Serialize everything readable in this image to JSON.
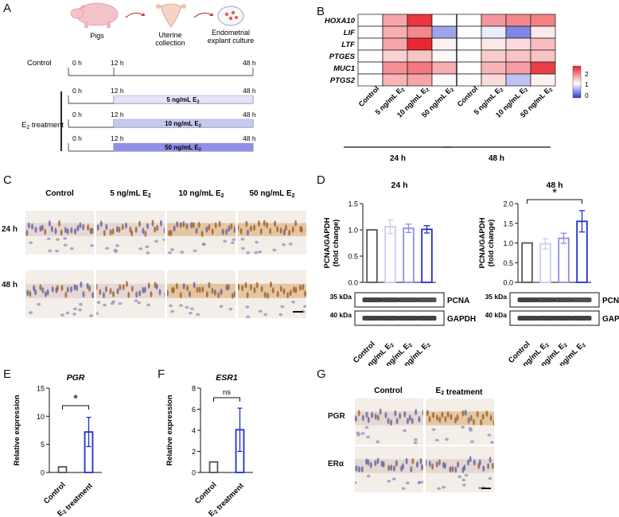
{
  "panels": {
    "a": "A",
    "b": "B",
    "c": "C",
    "d": "D",
    "e": "E",
    "f": "F",
    "g": "G"
  },
  "panel_a": {
    "pigs_label": "Pigs",
    "uterine_label": "Uterine collection",
    "explant_label": "Endometrial explant culture",
    "control_label": "Control",
    "treatment_label": "E₂ treatment",
    "time_0": "0 h",
    "time_12": "12 h",
    "time_48": "48 h",
    "doses": [
      "5 ng/mL E₂",
      "10 ng/mL E₂",
      "50 ng/mL E₂"
    ],
    "colors": {
      "dose5": "#e3e4f8",
      "dose10": "#c7c9f0",
      "dose50": "#8e8fe6"
    }
  },
  "chart_data": [
    {
      "id": "B",
      "type": "heatmap",
      "rows": [
        "HOXA10",
        "LIF",
        "LTF",
        "PTGES",
        "MUC1",
        "PTGS2"
      ],
      "columns": [
        "Control",
        "5 ng/mL E₂",
        "10 ng/mL E₂",
        "50 ng/mL E₂",
        "Control",
        "5 ng/mL E₂",
        "10 ng/mL E₂",
        "50 ng/mL E₂"
      ],
      "groups": [
        {
          "label": "24 h",
          "columns": [
            0,
            1,
            2,
            3
          ]
        },
        {
          "label": "48 h",
          "columns": [
            4,
            5,
            6,
            7
          ]
        }
      ],
      "values": [
        [
          1.0,
          1.6,
          2.35,
          1.0,
          1.0,
          1.7,
          1.8,
          1.85
        ],
        [
          1.0,
          1.55,
          1.8,
          0.55,
          1.0,
          0.9,
          0.4,
          1.15
        ],
        [
          1.0,
          1.6,
          2.45,
          1.1,
          1.0,
          1.15,
          1.25,
          1.45
        ],
        [
          1.0,
          1.3,
          1.4,
          1.05,
          1.0,
          1.35,
          1.4,
          1.4
        ],
        [
          1.0,
          1.75,
          1.9,
          1.55,
          1.0,
          1.5,
          1.65,
          2.3
        ],
        [
          1.0,
          1.5,
          1.6,
          1.05,
          1.0,
          1.25,
          0.7,
          1.1
        ]
      ],
      "colorbar": {
        "ticks": [
          "2",
          "1",
          "0"
        ],
        "min": 0,
        "max": 2.5
      }
    },
    {
      "id": "D-24h",
      "type": "bar",
      "title": "24 h",
      "ylabel": "PCNA/GAPDH (fold change)",
      "categories": [
        "Control",
        "5 ng/mL E₂",
        "10 ng/mL E₂",
        "50 ng/mL E₂"
      ],
      "values": [
        1.0,
        1.06,
        1.03,
        1.01
      ],
      "errors": [
        0,
        0.13,
        0.08,
        0.07
      ],
      "ylim": [
        0,
        1.5
      ],
      "yticks": [
        "0.0",
        "0.5",
        "1.0",
        "1.5"
      ]
    },
    {
      "id": "D-48h",
      "type": "bar",
      "title": "48 h",
      "ylabel": "PCNA/GAPDH (fold change)",
      "categories": [
        "Control",
        "5 ng/mL E₂",
        "10 ng/mL E₂",
        "50 ng/mL E₂"
      ],
      "values": [
        1.0,
        0.98,
        1.12,
        1.55
      ],
      "errors": [
        0,
        0.13,
        0.13,
        0.27
      ],
      "ylim": [
        0,
        2.0
      ],
      "yticks": [
        "0.0",
        "0.5",
        "1.0",
        "1.5",
        "2.0"
      ],
      "significance": "*"
    },
    {
      "id": "E",
      "type": "bar",
      "title": "PGR",
      "ylabel": "Relative expression",
      "categories": [
        "Control",
        "E₂ treatment"
      ],
      "values": [
        1.0,
        7.2
      ],
      "errors": [
        0,
        2.6
      ],
      "ylim": [
        0,
        15
      ],
      "yticks": [
        "0",
        "5",
        "10",
        "15"
      ],
      "significance": "*"
    },
    {
      "id": "F",
      "type": "bar",
      "title": "ESR1",
      "ylabel": "Relative expression",
      "categories": [
        "Control",
        "E₂ treatment"
      ],
      "values": [
        1.0,
        4.05
      ],
      "errors": [
        0,
        2.05
      ],
      "ylim": [
        0,
        8
      ],
      "yticks": [
        "0",
        "2",
        "4",
        "6",
        "8"
      ],
      "significance": "ns"
    }
  ],
  "panel_c": {
    "columns": [
      "Control",
      "5 ng/mL E₂",
      "10 ng/mL E₂",
      "50 ng/mL E₂"
    ],
    "rows": [
      "24 h",
      "48 h"
    ]
  },
  "blots": {
    "pcna_label": "PCNA",
    "gapdh_label": "GAPDH",
    "kda_35": "35 kDa",
    "kda_40": "40 kDa"
  },
  "panel_g": {
    "columns": [
      "Control",
      "E₂ treatment"
    ],
    "rows": [
      "PGR",
      "ERα"
    ]
  },
  "colors": {
    "bar0": "#555555",
    "bar1": "#c9cbf3",
    "bar2": "#8c8fe6",
    "bar3": "#1f2fd0",
    "hm_hi": "#e8202a",
    "hm_lo": "#2a36d4"
  }
}
